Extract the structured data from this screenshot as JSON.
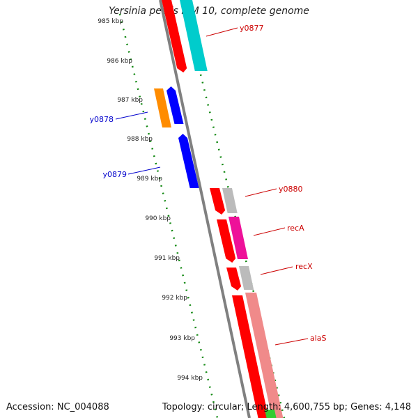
{
  "header": {
    "title": "Yersinia pestis KIM 10, complete genome"
  },
  "footer": {
    "accession": "Accession: NC_004088",
    "info": "Topology: circular; Length: 4,600,755 bp; Genes: 4,148"
  },
  "colors": {
    "backbone": "#808080",
    "ticks": "#118811",
    "tick_label": "#222222",
    "forward_label": "#cc0000",
    "reverse_label": "#0000cc",
    "cds": "#ff0000",
    "cds_reverse": "#0000ff",
    "blast": "#00cccc",
    "orange": "#ff8c00",
    "grey": "#bbbbbb",
    "magenta": "#ee1199",
    "salmon": "#f08a8a",
    "green": "#33cc33"
  },
  "tick_labels": [
    "985 kbp",
    "986 kbp",
    "987 kbp",
    "988 kbp",
    "989 kbp",
    "990 kbp",
    "991 kbp",
    "992 kbp",
    "993 kbp",
    "994 kbp"
  ],
  "gene_labels": [
    {
      "name": "y0877",
      "strand": "forward"
    },
    {
      "name": "y0878",
      "strand": "reverse"
    },
    {
      "name": "y0879",
      "strand": "reverse"
    },
    {
      "name": "y0880",
      "strand": "forward"
    },
    {
      "name": "recA",
      "strand": "forward"
    },
    {
      "name": "recX",
      "strand": "forward"
    },
    {
      "name": "alaS",
      "strand": "forward"
    }
  ]
}
